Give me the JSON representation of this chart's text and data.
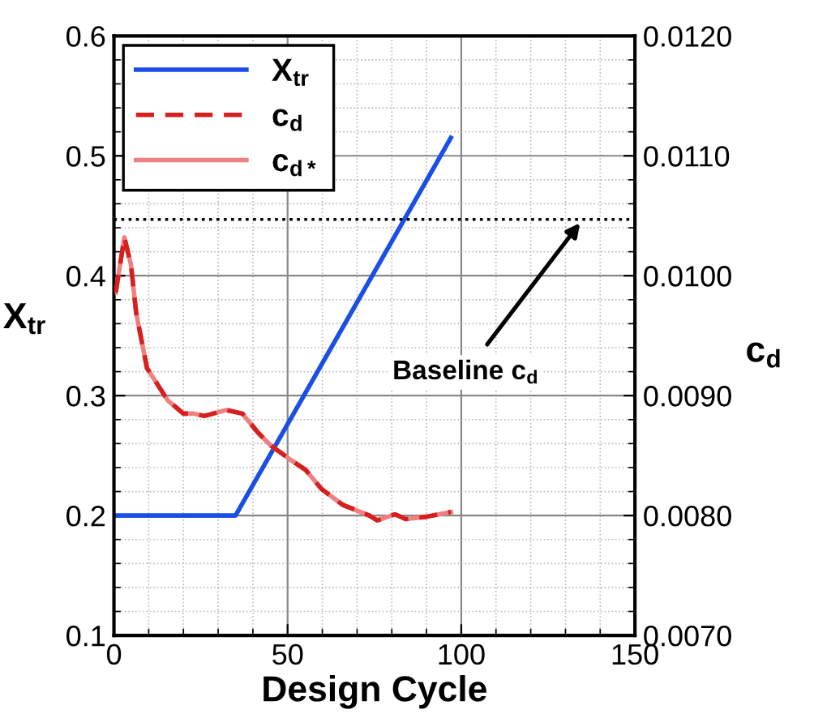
{
  "chart_data": {
    "type": "line",
    "xlabel": "Design Cycle",
    "ylabel": "X$_{tr}$",
    "y2label": "c$_{d}$",
    "xlim": [
      0,
      150
    ],
    "xticks": [
      0,
      50,
      100,
      150
    ],
    "ylim": [
      0.1,
      0.6
    ],
    "yticks": [
      0.1,
      0.2,
      0.3,
      0.4,
      0.5,
      0.6
    ],
    "y2lim": [
      0.007,
      0.012
    ],
    "y2ticks": [
      {
        "value": 0.007,
        "label": "0.0070"
      },
      {
        "value": 0.008,
        "label": "0.0080"
      },
      {
        "value": 0.009,
        "label": "0.0090"
      },
      {
        "value": 0.01,
        "label": "0.0100"
      },
      {
        "value": 0.011,
        "label": "0.0110"
      },
      {
        "value": 0.012,
        "label": "0.0120"
      }
    ],
    "grid": true,
    "legend": "top left",
    "marker": "none",
    "series": [
      {
        "name": "X$_{tr}$",
        "color": "#1a4fe6",
        "line_style": "solid",
        "x": [
          0,
          35,
          97
        ],
        "values": [
          0.2,
          0.2,
          0.515
        ]
      },
      {
        "name": "c$_{d}$",
        "color": "#d62020",
        "line_style": "dashed",
        "axis": "y2",
        "x": [
          0.5,
          3,
          4.9,
          6.4,
          9.5,
          15.5,
          20,
          23,
          26,
          32.3,
          37,
          41.5,
          45.3,
          50.6,
          55.2,
          59.8,
          65.8,
          73.5,
          75.8,
          81,
          84,
          90,
          97
        ],
        "values": [
          0.00986,
          0.01032,
          0.01009,
          0.00969,
          0.00923,
          0.00896,
          0.00885,
          0.00885,
          0.00883,
          0.00888,
          0.00885,
          0.00869,
          0.00858,
          0.00847,
          0.00838,
          0.00822,
          0.00809,
          0.008,
          0.00796,
          0.00801,
          0.00797,
          0.00799,
          0.00803
        ]
      },
      {
        "name": "c$_{d*}$",
        "color": "#f08080",
        "line_style": "solid",
        "axis": "y2",
        "x": [
          0.5,
          3,
          4.9,
          6.4,
          9.5,
          15.5,
          20,
          23,
          26,
          32.3,
          37,
          41.5,
          45.3,
          50.6,
          55.2,
          59.8,
          65.8,
          73.5,
          75.8,
          81,
          84,
          90,
          97
        ],
        "values": [
          0.00986,
          0.01032,
          0.01009,
          0.00969,
          0.00923,
          0.00896,
          0.00885,
          0.00885,
          0.00883,
          0.00888,
          0.00885,
          0.00869,
          0.00858,
          0.00847,
          0.00838,
          0.00822,
          0.00809,
          0.008,
          0.00796,
          0.00801,
          0.00797,
          0.00799,
          0.00803
        ]
      }
    ],
    "ref_lines": [
      {
        "axis": "y2",
        "value": 0.01047,
        "color": "#000000",
        "line_style": "dotted"
      }
    ],
    "annotations": [
      "Baseline c$_{d}$"
    ]
  }
}
